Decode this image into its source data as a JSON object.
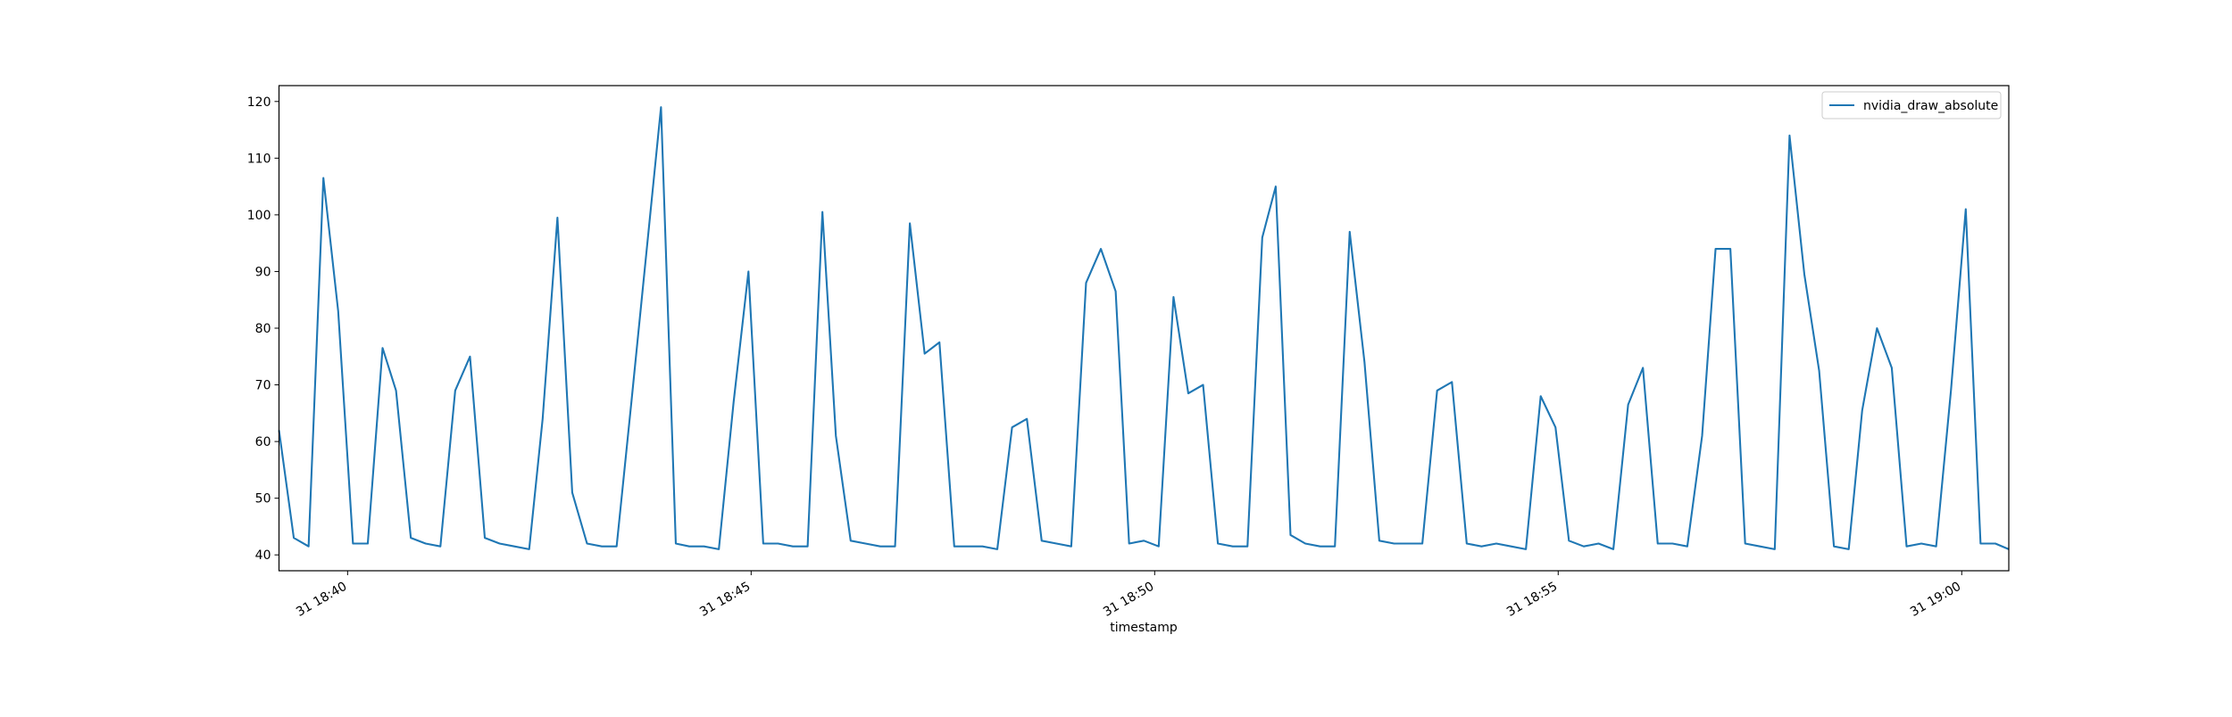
{
  "chart_data": {
    "type": "line",
    "x_label": "timestamp",
    "x": [
      "18:39:09",
      "18:39:20",
      "18:39:31",
      "18:39:42",
      "18:39:53",
      "18:40:04",
      "18:40:15",
      "18:40:26",
      "18:40:36",
      "18:40:47",
      "18:40:58",
      "18:41:09",
      "18:41:20",
      "18:41:31",
      "18:41:42",
      "18:41:53",
      "18:42:04",
      "18:42:15",
      "18:42:25",
      "18:42:36",
      "18:42:47",
      "18:42:58",
      "18:43:09",
      "18:43:20",
      "18:43:31",
      "18:43:42",
      "18:43:53",
      "18:44:04",
      "18:44:14",
      "18:44:25",
      "18:44:36",
      "18:44:47",
      "18:44:58",
      "18:45:09",
      "18:45:20",
      "18:45:31",
      "18:45:42",
      "18:45:53",
      "18:46:03",
      "18:46:14",
      "18:46:25",
      "18:46:36",
      "18:46:47",
      "18:46:58",
      "18:47:09",
      "18:47:20",
      "18:47:31",
      "18:47:42",
      "18:47:52",
      "18:48:03",
      "18:48:14",
      "18:48:25",
      "18:48:36",
      "18:48:47",
      "18:48:58",
      "18:49:09",
      "18:49:20",
      "18:49:31",
      "18:49:41",
      "18:49:52",
      "18:50:03",
      "18:50:14",
      "18:50:25",
      "18:50:36",
      "18:50:47",
      "18:50:58",
      "18:51:09",
      "18:51:20",
      "18:51:30",
      "18:51:41",
      "18:51:52",
      "18:52:03",
      "18:52:14",
      "18:52:25",
      "18:52:36",
      "18:52:47",
      "18:52:58",
      "18:53:09",
      "18:53:19",
      "18:53:30",
      "18:53:41",
      "18:53:52",
      "18:54:03",
      "18:54:14",
      "18:54:25",
      "18:54:36",
      "18:54:47",
      "18:54:58",
      "18:55:08",
      "18:55:19",
      "18:55:30",
      "18:55:41",
      "18:55:52",
      "18:56:03",
      "18:56:14",
      "18:56:25",
      "18:56:36",
      "18:56:47",
      "18:56:57",
      "18:57:08",
      "18:57:19",
      "18:57:30",
      "18:57:41",
      "18:57:52",
      "18:58:03",
      "18:58:14",
      "18:58:25",
      "18:58:36",
      "18:58:46",
      "18:58:57",
      "18:59:08",
      "18:59:19",
      "18:59:30",
      "18:59:41",
      "18:59:52",
      "19:00:03",
      "19:00:14",
      "19:00:25",
      "19:00:35"
    ],
    "series": [
      {
        "name": "nvidia_draw_absolute",
        "color": "#1f77b4",
        "values": [
          62,
          43,
          41.5,
          106.5,
          83,
          42,
          42,
          76.5,
          69,
          43,
          42,
          41.5,
          69,
          75,
          43,
          42,
          41.5,
          41,
          64,
          99.5,
          51,
          42,
          41.5,
          41.5,
          67,
          93,
          119,
          42,
          41.5,
          41.5,
          41,
          67,
          90,
          42,
          42,
          41.5,
          41.5,
          100.5,
          61,
          42.5,
          42,
          41.5,
          41.5,
          98.5,
          75.5,
          77.5,
          41.5,
          41.5,
          41.5,
          41,
          62.5,
          64,
          42.5,
          42,
          41.5,
          88,
          94,
          86.5,
          42,
          42.5,
          41.5,
          85.5,
          68.5,
          70,
          42,
          41.5,
          41.5,
          96,
          105,
          43.5,
          42,
          41.5,
          41.5,
          97,
          74,
          42.5,
          42,
          42,
          42,
          69,
          70.5,
          42,
          41.5,
          42,
          41.5,
          41,
          68,
          62.5,
          42.5,
          41.5,
          42,
          41,
          66.5,
          73,
          42,
          42,
          41.5,
          61,
          94,
          94,
          42,
          41.5,
          41,
          114,
          89.5,
          72.5,
          41.5,
          41,
          65.5,
          80,
          73,
          41.5,
          42,
          41.5,
          69,
          101,
          42,
          42,
          41
        ]
      }
    ],
    "xlim": [
      "18:39:09",
      "19:00:35"
    ],
    "xticks": [
      {
        "value": "18:40:00",
        "label": "31 18:40"
      },
      {
        "value": "18:45:00",
        "label": "31 18:45"
      },
      {
        "value": "18:50:00",
        "label": "31 18:50"
      },
      {
        "value": "18:55:00",
        "label": "31 18:55"
      },
      {
        "value": "19:00:00",
        "label": "31 19:00"
      }
    ],
    "ylim": [
      37.2,
      122.8
    ],
    "yticks": [
      40,
      50,
      60,
      70,
      80,
      90,
      100,
      110,
      120
    ],
    "legend": "upper right",
    "grid": false
  }
}
